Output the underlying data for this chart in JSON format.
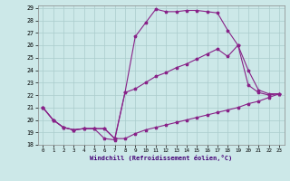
{
  "xlabel": "Windchill (Refroidissement éolien,°C)",
  "bg_color": "#cce8e8",
  "line_color": "#882288",
  "grid_color": "#aacccc",
  "xlim": [
    -0.5,
    23.5
  ],
  "ylim": [
    18,
    29.2
  ],
  "xticks": [
    0,
    1,
    2,
    3,
    4,
    5,
    6,
    7,
    8,
    9,
    10,
    11,
    12,
    13,
    14,
    15,
    16,
    17,
    18,
    19,
    20,
    21,
    22,
    23
  ],
  "yticks": [
    18,
    19,
    20,
    21,
    22,
    23,
    24,
    25,
    26,
    27,
    28,
    29
  ],
  "line1_x": [
    0,
    1,
    2,
    3,
    4,
    5,
    6,
    7,
    8,
    9,
    10,
    11,
    12,
    13,
    14,
    15,
    16,
    17,
    18,
    19,
    20,
    21,
    22,
    23
  ],
  "line1_y": [
    21.0,
    20.0,
    19.4,
    19.2,
    19.3,
    19.3,
    19.3,
    18.5,
    18.5,
    18.9,
    19.2,
    19.4,
    19.6,
    19.8,
    20.0,
    20.2,
    20.4,
    20.6,
    20.8,
    21.0,
    21.3,
    21.5,
    21.8,
    22.1
  ],
  "line2_x": [
    0,
    1,
    2,
    3,
    4,
    5,
    6,
    7,
    8,
    9,
    10,
    11,
    12,
    13,
    14,
    15,
    16,
    17,
    18,
    19,
    20,
    21,
    22,
    23
  ],
  "line2_y": [
    21.0,
    20.0,
    19.4,
    19.2,
    19.3,
    19.3,
    18.5,
    18.4,
    22.2,
    26.7,
    27.8,
    28.9,
    28.7,
    28.7,
    28.8,
    28.8,
    28.7,
    28.6,
    27.2,
    26.0,
    24.0,
    22.4,
    22.1,
    22.1
  ],
  "line3_x": [
    0,
    1,
    2,
    3,
    4,
    5,
    6,
    7,
    8,
    9,
    10,
    11,
    12,
    13,
    14,
    15,
    16,
    17,
    18,
    19,
    20,
    21,
    22,
    23
  ],
  "line3_y": [
    21.0,
    20.0,
    19.4,
    19.2,
    19.3,
    19.3,
    19.3,
    18.5,
    22.2,
    22.5,
    23.0,
    23.5,
    23.8,
    24.2,
    24.5,
    24.9,
    25.3,
    25.7,
    25.1,
    26.0,
    22.8,
    22.2,
    22.0,
    22.1
  ]
}
